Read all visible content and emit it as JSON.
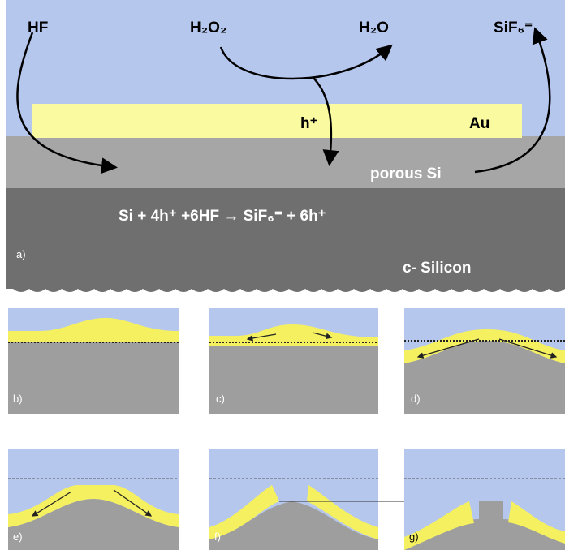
{
  "panel_a": {
    "hf": "HF",
    "h2o2": "H₂O₂",
    "h2o": "H₂O",
    "sif6": "SiF₆⁼",
    "hole": "h⁺",
    "au": "Au",
    "porous": "porous Si",
    "equation": "Si + 4h⁺ +6HF → SiF₆⁼ + 6h⁺",
    "label": "a)",
    "silicon": "c- Silicon"
  },
  "panels": [
    {
      "label": "b)"
    },
    {
      "label": "c)"
    },
    {
      "label": "d)"
    },
    {
      "label": "e)"
    },
    {
      "label": "f)"
    },
    {
      "label": "g)"
    }
  ]
}
